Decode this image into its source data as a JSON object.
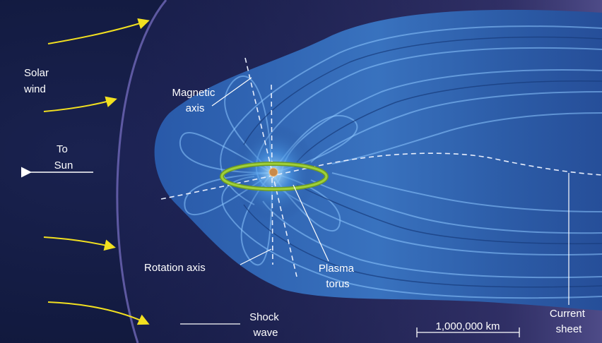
{
  "labels": {
    "solar_wind": [
      "Solar",
      "wind"
    ],
    "to_sun": [
      "To",
      "Sun"
    ],
    "magnetic_axis": [
      "Magnetic",
      "axis"
    ],
    "rotation_axis": "Rotation axis",
    "plasma_torus": [
      "Plasma",
      "torus"
    ],
    "shock_wave": [
      "Shock",
      "wave"
    ],
    "scale_bar": "1,000,000 km",
    "current_sheet": [
      "Current",
      "sheet"
    ]
  },
  "colors": {
    "space": "#101a3c",
    "field_lines": "#3f86d6",
    "field_highlight": "#8cc6ff",
    "solar_wind_arrows": "#f2e020",
    "plasma_torus": "#9fd03a",
    "planet": "#c98a4a",
    "label_text": "#ffffff"
  }
}
